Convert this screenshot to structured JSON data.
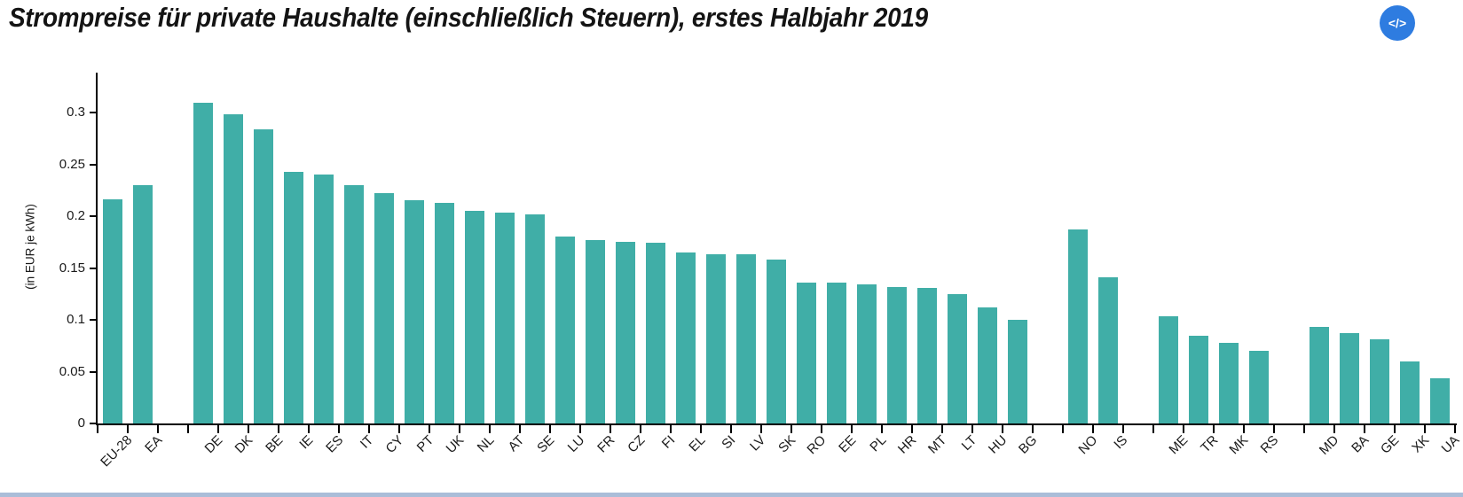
{
  "header": {
    "title": "Strompreise für private Haushalte (einschließlich Steuern), erstes Halbjahr 2019",
    "embed_button_label": "</>"
  },
  "chart_data": {
    "type": "bar",
    "title": "Strompreise für private Haushalte (einschließlich Steuern), erstes Halbjahr 2019",
    "xlabel": "",
    "ylabel": "(in EUR je kWh)",
    "ylim": [
      0,
      0.338
    ],
    "grid": false,
    "legend": false,
    "yticks": [
      {
        "value": 0,
        "label": "0"
      },
      {
        "value": 0.05,
        "label": "0.05"
      },
      {
        "value": 0.1,
        "label": "0.1"
      },
      {
        "value": 0.15,
        "label": "0.15"
      },
      {
        "value": 0.2,
        "label": "0.2"
      },
      {
        "value": 0.25,
        "label": "0.25"
      },
      {
        "value": 0.3,
        "label": "0.3"
      }
    ],
    "categories": [
      "EU-28",
      "EA",
      "DE",
      "DK",
      "BE",
      "IE",
      "ES",
      "IT",
      "CY",
      "PT",
      "UK",
      "NL",
      "AT",
      "SE",
      "LU",
      "FR",
      "CZ",
      "FI",
      "EL",
      "SI",
      "LV",
      "SK",
      "RO",
      "EE",
      "PL",
      "HR",
      "MT",
      "LT",
      "HU",
      "BG",
      "NO",
      "IS",
      "ME",
      "TR",
      "MK",
      "RS",
      "MD",
      "BA",
      "GE",
      "XK",
      "UA"
    ],
    "values": [
      0.216,
      0.23,
      0.309,
      0.298,
      0.284,
      0.243,
      0.24,
      0.23,
      0.222,
      0.215,
      0.213,
      0.205,
      0.203,
      0.202,
      0.18,
      0.177,
      0.175,
      0.174,
      0.165,
      0.163,
      0.163,
      0.158,
      0.136,
      0.136,
      0.134,
      0.132,
      0.131,
      0.125,
      0.112,
      0.1,
      0.187,
      0.141,
      0.103,
      0.085,
      0.078,
      0.07,
      0.093,
      0.087,
      0.081,
      0.06,
      0.044
    ],
    "gaps_after": [
      "EA",
      "BG",
      "IS",
      "RS"
    ]
  },
  "colors": {
    "bar": "#40aea7",
    "axis": "#000000",
    "embed_button": "#2e7ce0",
    "scrollbar": "#aabdd8"
  }
}
